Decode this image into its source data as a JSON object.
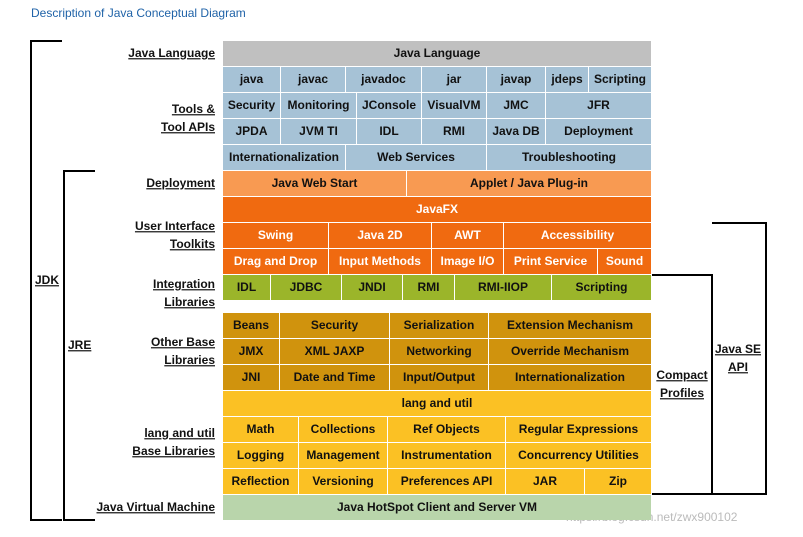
{
  "title": "Description of Java Conceptual Diagram",
  "layers": [
    {
      "label": [
        "Java Language"
      ],
      "rows": [
        [
          "Java Language"
        ]
      ]
    },
    {
      "label": [
        "Tools &",
        "Tool APIs"
      ],
      "rows": [
        [
          "java",
          "javac",
          "javadoc",
          "jar",
          "javap",
          "jdeps",
          "Scripting"
        ],
        [
          "Security",
          "Monitoring",
          "JConsole",
          "VisualVM",
          "JMC",
          "JFR"
        ],
        [
          "JPDA",
          "JVM TI",
          "IDL",
          "RMI",
          "Java DB",
          "Deployment"
        ],
        [
          "Internationalization",
          "Web Services",
          "Troubleshooting"
        ]
      ]
    },
    {
      "label": [
        "Deployment"
      ],
      "rows": [
        [
          "Java Web Start",
          "Applet / Java Plug-in"
        ]
      ]
    },
    {
      "label": [
        "User Interface",
        "Toolkits"
      ],
      "rows": [
        [
          "JavaFX"
        ],
        [
          "Swing",
          "Java 2D",
          "AWT",
          "Accessibility"
        ],
        [
          "Drag and Drop",
          "Input Methods",
          "Image I/O",
          "Print Service",
          "Sound"
        ]
      ]
    },
    {
      "label": [
        "Integration",
        "Libraries"
      ],
      "rows": [
        [
          "IDL",
          "JDBC",
          "JNDI",
          "RMI",
          "RMI-IIOP",
          "Scripting"
        ]
      ]
    },
    {
      "label": [
        "Other Base",
        "Libraries"
      ],
      "rows": [
        [
          "Beans",
          "Security",
          "Serialization",
          "Extension Mechanism"
        ],
        [
          "JMX",
          "XML JAXP",
          "Networking",
          "Override Mechanism"
        ],
        [
          "JNI",
          "Date and Time",
          "Input/Output",
          "Internationalization"
        ]
      ]
    },
    {
      "label": [
        "lang and util",
        "Base Libraries"
      ],
      "rows": [
        [
          "lang and util"
        ],
        [
          "Math",
          "Collections",
          "Ref Objects",
          "Regular Expressions"
        ],
        [
          "Logging",
          "Management",
          "Instrumentation",
          "Concurrency Utilities"
        ],
        [
          "Reflection",
          "Versioning",
          "Preferences API",
          "JAR",
          "Zip"
        ]
      ]
    },
    {
      "label": [
        "Java Virtual Machine"
      ],
      "rows": [
        [
          "Java HotSpot Client and Server VM"
        ]
      ]
    }
  ],
  "brackets": {
    "jdk": "JDK",
    "jre": "JRE",
    "compact": [
      "Compact",
      "Profiles"
    ],
    "se": [
      "Java SE",
      "API"
    ]
  },
  "watermark": "https://blog.csdn.net/zwx900102"
}
